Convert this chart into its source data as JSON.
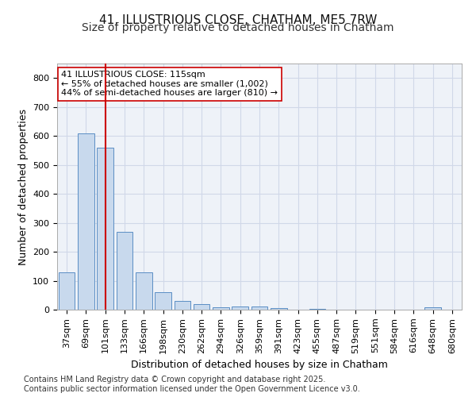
{
  "title": "41, ILLUSTRIOUS CLOSE, CHATHAM, ME5 7RW",
  "subtitle": "Size of property relative to detached houses in Chatham",
  "xlabel": "Distribution of detached houses by size in Chatham",
  "ylabel": "Number of detached properties",
  "categories": [
    "37sqm",
    "69sqm",
    "101sqm",
    "133sqm",
    "166sqm",
    "198sqm",
    "230sqm",
    "262sqm",
    "294sqm",
    "326sqm",
    "359sqm",
    "391sqm",
    "423sqm",
    "455sqm",
    "487sqm",
    "519sqm",
    "551sqm",
    "584sqm",
    "616sqm",
    "648sqm",
    "680sqm"
  ],
  "values": [
    130,
    610,
    560,
    270,
    130,
    60,
    30,
    20,
    8,
    12,
    12,
    5,
    0,
    2,
    0,
    0,
    0,
    0,
    0,
    8,
    0
  ],
  "bar_color": "#c8d9ed",
  "bar_edge_color": "#5b8ec4",
  "grid_color": "#d0d8e8",
  "background_color": "#eef2f8",
  "vline_x": 2,
  "vline_color": "#cc0000",
  "annotation_text": "41 ILLUSTRIOUS CLOSE: 115sqm\n← 55% of detached houses are smaller (1,002)\n44% of semi-detached houses are larger (810) →",
  "annotation_box_color": "#ffffff",
  "annotation_box_edge": "#cc0000",
  "ylim": [
    0,
    850
  ],
  "yticks": [
    0,
    100,
    200,
    300,
    400,
    500,
    600,
    700,
    800
  ],
  "footer_text": "Contains HM Land Registry data © Crown copyright and database right 2025.\nContains public sector information licensed under the Open Government Licence v3.0.",
  "title_fontsize": 11,
  "subtitle_fontsize": 10,
  "axis_label_fontsize": 9,
  "tick_fontsize": 8,
  "annotation_fontsize": 8,
  "footer_fontsize": 7
}
